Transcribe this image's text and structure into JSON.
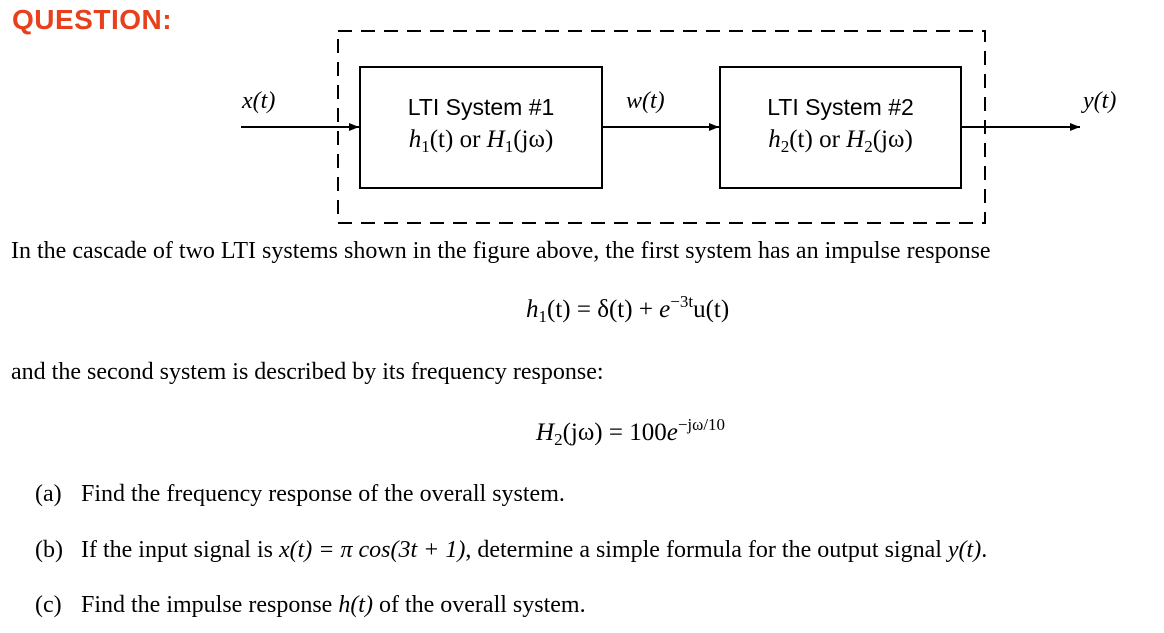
{
  "heading": "QUESTION:",
  "diagram": {
    "input_label": "x(t)",
    "mid_label": "w(t)",
    "output_label": "y(t)",
    "system1": {
      "title": "LTI System #1",
      "h": "h",
      "sub": "1",
      "t": "(t)",
      "or": " or ",
      "H": "H",
      "jw": "(jω)"
    },
    "system2": {
      "title": "LTI System #2",
      "h": "h",
      "sub": "2",
      "t": "(t)",
      "or": " or ",
      "H": "H",
      "jw": "(jω)"
    }
  },
  "intro": "In the cascade of two LTI systems shown in the figure above, the first system has an impulse response",
  "eq1": {
    "lhs": "h",
    "lhs_sub": "1",
    "lhs_arg": "(t) = δ(t) + ",
    "e": "e",
    "exp": "−3t",
    "tail": "u(t)"
  },
  "middle": "and the second system is described by its frequency response:",
  "eq2": {
    "lhs": "H",
    "lhs_sub": "2",
    "lhs_arg": "(jω) = 100",
    "e": "e",
    "exp": "−jω/10"
  },
  "items": [
    {
      "label": "(a)",
      "text": "Find the frequency response of the overall system."
    },
    {
      "label": "(b)",
      "pre": "If the input signal is ",
      "math1": "x(t) = π cos(3t + 1)",
      "mid": ", determine a simple formula for the output signal ",
      "math2": "y(t)",
      "post": "."
    },
    {
      "label": "(c)",
      "pre": "Find the impulse response ",
      "math1": "h(t)",
      "post": " of the overall system."
    }
  ]
}
